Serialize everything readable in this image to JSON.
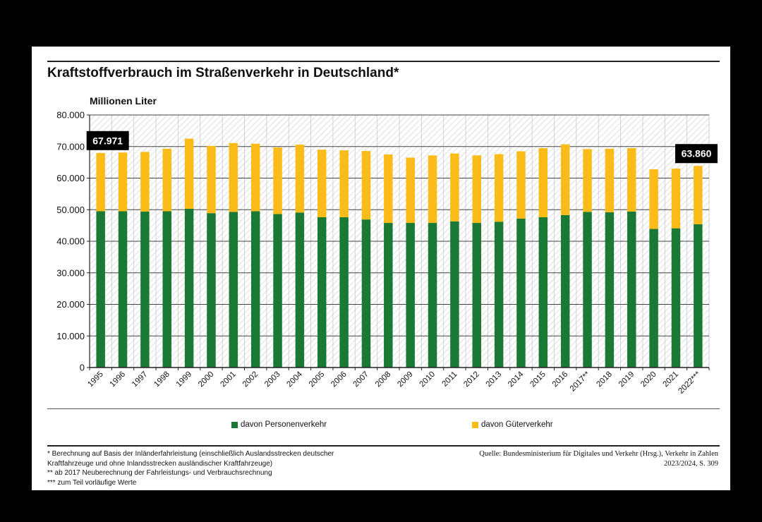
{
  "title": "Kraftstoffverbrauch im Straßenverkehr in Deutschland*",
  "colors": {
    "personen": "#1a7a35",
    "gueter": "#fbbc1a",
    "callout_bg": "#000000",
    "callout_text": "#ffffff"
  },
  "chart_data": {
    "type": "bar",
    "stacked": true,
    "ylabel": "Millionen Liter",
    "ylim": [
      0,
      80000
    ],
    "yticks": [
      "0",
      "10.000",
      "20.000",
      "30.000",
      "40.000",
      "50.000",
      "60.000",
      "70.000",
      "80.000"
    ],
    "grid": true,
    "legend_position": "bottom",
    "categories": [
      "1995",
      "1996",
      "1997",
      "1998",
      "1999",
      "2000",
      "2001",
      "2002",
      "2003",
      "2004",
      "2005",
      "2006",
      "2007",
      "2008",
      "2009",
      "2010",
      "2011",
      "2012",
      "2013",
      "2014",
      "2015",
      "2016",
      "2017**",
      "2018",
      "2019",
      "2020",
      "2021",
      "2022***"
    ],
    "series": [
      {
        "name": "davon Personenverkehr",
        "values": [
          49500,
          49500,
          49400,
          49500,
          50300,
          48900,
          49300,
          49500,
          48600,
          49100,
          47600,
          47600,
          46900,
          45800,
          45800,
          45800,
          46300,
          45800,
          46200,
          47200,
          47600,
          48300,
          49300,
          49200,
          49400,
          43900,
          44100,
          45400
        ]
      },
      {
        "name": "davon Güterverkehr",
        "values": [
          18471,
          18600,
          18900,
          19800,
          22200,
          21300,
          21800,
          21400,
          21100,
          21500,
          21400,
          21200,
          21700,
          21700,
          20700,
          21400,
          21500,
          21400,
          21400,
          21300,
          21900,
          22400,
          19900,
          20100,
          20100,
          18900,
          18900,
          18460
        ]
      }
    ],
    "annotations": [
      {
        "category": "1995",
        "text": "67.971"
      },
      {
        "category": "2022***",
        "text": "63.860"
      }
    ]
  },
  "legend": [
    {
      "label": "davon Personenverkehr"
    },
    {
      "label": "davon Güterverkehr"
    }
  ],
  "footnotes": [
    "* Berechnung auf Basis der Inländerfahrleistung (einschließlich Auslandsstrecken deutscher",
    "Kraftfahrzeuge und ohne Inlandsstrecken ausländischer Kraftfahrzeuge)",
    "** ab 2017 Neuberechnung der Fahrleistungs- und Verbrauchsrechnung",
    "*** zum Teil vorläufige Werte"
  ],
  "source": [
    "Quelle: Bundesministerium für Digitales und Verkehr (Hrsg.), Verkehr in Zahlen",
    "2023/2024, S. 309"
  ]
}
